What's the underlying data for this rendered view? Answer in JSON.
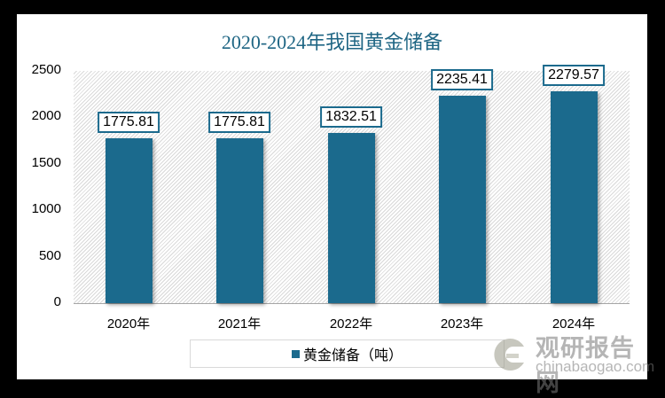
{
  "chart_data": {
    "type": "bar",
    "title": "2020-2024年我国黄金储备",
    "categories": [
      "2020年",
      "2021年",
      "2022年",
      "2023年",
      "2024年"
    ],
    "series": [
      {
        "name": "黄金储备（吨）",
        "values": [
          1775.81,
          1775.81,
          1832.51,
          2235.41,
          2279.57
        ],
        "color": "#1b6a8d"
      }
    ],
    "data_labels": [
      "1775.81",
      "1775.81",
      "1832.51",
      "2235.41",
      "2279.57"
    ],
    "xlabel": "",
    "ylabel": "",
    "ylim": [
      0,
      2500
    ],
    "yticks": [
      "0",
      "500",
      "1000",
      "1500",
      "2000",
      "2500"
    ],
    "legend_position": "bottom",
    "grid": false
  },
  "legend": {
    "label": "黄金储备（吨）"
  },
  "watermark": {
    "cn": "观研报告网",
    "en": "chinabaogao.com"
  }
}
